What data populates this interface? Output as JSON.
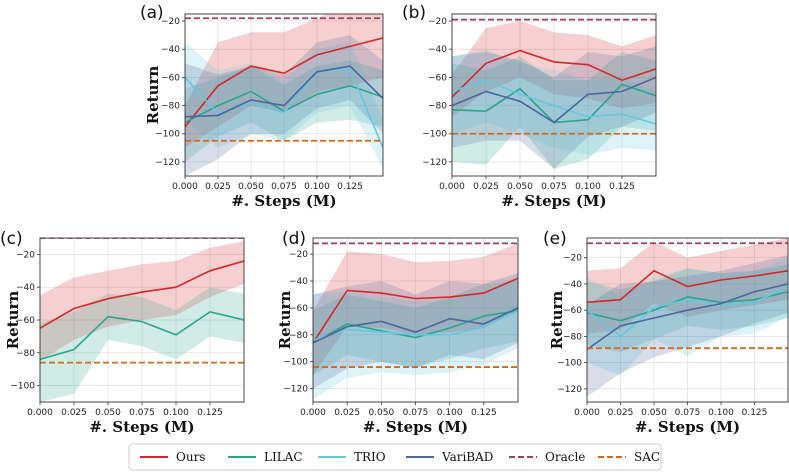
{
  "series_styles": [
    {
      "name": "Ours",
      "color": "#d62728",
      "dashed": false
    },
    {
      "name": "LILAC",
      "color": "#2ca58d",
      "dashed": false
    },
    {
      "name": "TRIO",
      "color": "#66c7e0",
      "dashed": false
    },
    {
      "name": "VariBAD",
      "color": "#4a67a1",
      "dashed": false
    },
    {
      "name": "Oracle",
      "color": "#a0405a",
      "dashed": true
    },
    {
      "name": "SAC",
      "color": "#d2691e",
      "dashed": true
    }
  ],
  "chart_data": [
    {
      "type": "line",
      "panel": "(a)",
      "xlabel": "#. Steps (M)",
      "ylabel": "Return",
      "xlim": [
        0,
        0.15
      ],
      "ylim": [
        -130,
        -15
      ],
      "xticks": [
        "0.000",
        "0.025",
        "0.050",
        "0.075",
        "0.100",
        "0.125"
      ],
      "yticks": [
        -120,
        -100,
        -80,
        -60,
        -40,
        -20
      ],
      "x": [
        0,
        0.025,
        0.05,
        0.075,
        0.1,
        0.125,
        0.15
      ],
      "series": [
        {
          "name": "Ours",
          "values": [
            -95,
            -66,
            -52,
            -57,
            -44,
            -38,
            -32
          ],
          "lower": [
            -110,
            -95,
            -80,
            -85,
            -70,
            -66,
            -60
          ],
          "upper": [
            -80,
            -35,
            -28,
            -28,
            -18,
            -8,
            -8
          ]
        },
        {
          "name": "LILAC",
          "values": [
            -92,
            -80,
            -70,
            -84,
            -72,
            -66,
            -74
          ],
          "lower": [
            -120,
            -102,
            -92,
            -105,
            -92,
            -90,
            -95
          ],
          "upper": [
            -68,
            -60,
            -52,
            -65,
            -52,
            -48,
            -55
          ]
        },
        {
          "name": "TRIO",
          "values": [
            -60,
            -86,
            -78,
            -85,
            -56,
            -54,
            -110
          ],
          "lower": [
            -90,
            -110,
            -100,
            -105,
            -85,
            -80,
            -125
          ],
          "upper": [
            -35,
            -55,
            -50,
            -62,
            -40,
            -35,
            -90
          ]
        },
        {
          "name": "VariBAD",
          "values": [
            -88,
            -87,
            -76,
            -80,
            -56,
            -52,
            -75
          ],
          "lower": [
            -130,
            -118,
            -100,
            -100,
            -82,
            -76,
            -100
          ],
          "upper": [
            -50,
            -58,
            -52,
            -58,
            -35,
            -30,
            -48
          ]
        },
        {
          "name": "Oracle",
          "constant": -18
        },
        {
          "name": "SAC",
          "constant": -105
        }
      ]
    },
    {
      "type": "line",
      "panel": "(b)",
      "xlabel": "#. Steps (M)",
      "ylabel": "",
      "xlim": [
        0,
        0.15
      ],
      "ylim": [
        -130,
        -15
      ],
      "xticks": [
        "0.000",
        "0.025",
        "0.050",
        "0.075",
        "0.100",
        "0.125"
      ],
      "yticks": [
        -120,
        -100,
        -80,
        -60,
        -40,
        -20
      ],
      "x": [
        0,
        0.025,
        0.05,
        0.075,
        0.1,
        0.125,
        0.15
      ],
      "series": [
        {
          "name": "Ours",
          "values": [
            -74,
            -50,
            -41,
            -49,
            -51,
            -62,
            -54
          ],
          "lower": [
            -88,
            -70,
            -60,
            -72,
            -75,
            -82,
            -78
          ],
          "upper": [
            -58,
            -25,
            -20,
            -28,
            -30,
            -38,
            -30
          ]
        },
        {
          "name": "LILAC",
          "values": [
            -83,
            -84,
            -68,
            -92,
            -90,
            -65,
            -73
          ],
          "lower": [
            -120,
            -122,
            -95,
            -125,
            -118,
            -95,
            -98
          ],
          "upper": [
            -50,
            -55,
            -45,
            -62,
            -62,
            -42,
            -48
          ]
        },
        {
          "name": "TRIO",
          "values": [
            -70,
            -62,
            -72,
            -80,
            -88,
            -86,
            -93
          ],
          "lower": [
            -100,
            -92,
            -100,
            -110,
            -115,
            -110,
            -112
          ],
          "upper": [
            -45,
            -40,
            -50,
            -55,
            -62,
            -60,
            -70
          ]
        },
        {
          "name": "VariBAD",
          "values": [
            -80,
            -70,
            -77,
            -92,
            -72,
            -70,
            -60
          ],
          "lower": [
            -110,
            -105,
            -105,
            -125,
            -102,
            -95,
            -85
          ],
          "upper": [
            -45,
            -42,
            -48,
            -60,
            -42,
            -45,
            -38
          ]
        },
        {
          "name": "Oracle",
          "constant": -19
        },
        {
          "name": "SAC",
          "constant": -100
        }
      ]
    },
    {
      "type": "line",
      "panel": "(c)",
      "xlabel": "#. Steps (M)",
      "ylabel": "Return",
      "xlim": [
        0,
        0.15
      ],
      "ylim": [
        -110,
        -10
      ],
      "xticks": [
        "0.000",
        "0.025",
        "0.050",
        "0.075",
        "0.100",
        "0.125"
      ],
      "yticks": [
        -100,
        -80,
        -60,
        -40,
        -20
      ],
      "x": [
        0,
        0.025,
        0.05,
        0.075,
        0.1,
        0.125,
        0.15
      ],
      "series": [
        {
          "name": "Ours",
          "values": [
            -65,
            -53,
            -47,
            -43,
            -40,
            -30,
            -24
          ],
          "lower": [
            -85,
            -72,
            -64,
            -60,
            -57,
            -46,
            -38
          ],
          "upper": [
            -45,
            -34,
            -30,
            -26,
            -24,
            -16,
            -12
          ]
        },
        {
          "name": "LILAC",
          "values": [
            -84,
            -78,
            -58,
            -61,
            -69,
            -55,
            -60
          ],
          "lower": [
            -110,
            -105,
            -72,
            -76,
            -84,
            -70,
            -74
          ],
          "upper": [
            -62,
            -55,
            -44,
            -46,
            -54,
            -40,
            -44
          ]
        },
        {
          "name": "Oracle",
          "constant": -10
        },
        {
          "name": "SAC",
          "constant": -86
        }
      ]
    },
    {
      "type": "line",
      "panel": "(d)",
      "xlabel": "#. Steps (M)",
      "ylabel": "Return",
      "xlim": [
        0,
        0.15
      ],
      "ylim": [
        -130,
        -8
      ],
      "xticks": [
        "0.000",
        "0.025",
        "0.050",
        "0.075",
        "0.100",
        "0.125"
      ],
      "yticks": [
        -120,
        -100,
        -80,
        -60,
        -40,
        -20
      ],
      "x": [
        0,
        0.025,
        0.05,
        0.075,
        0.1,
        0.125,
        0.15
      ],
      "series": [
        {
          "name": "Ours",
          "values": [
            -86,
            -47,
            -49,
            -53,
            -52,
            -49,
            -38
          ],
          "lower": [
            -110,
            -74,
            -75,
            -80,
            -78,
            -75,
            -62
          ],
          "upper": [
            -62,
            -18,
            -20,
            -26,
            -25,
            -22,
            -12
          ]
        },
        {
          "name": "LILAC",
          "values": [
            -86,
            -72,
            -77,
            -82,
            -75,
            -66,
            -62
          ],
          "lower": [
            -110,
            -95,
            -100,
            -104,
            -98,
            -90,
            -85
          ],
          "upper": [
            -62,
            -50,
            -55,
            -60,
            -52,
            -42,
            -40
          ]
        },
        {
          "name": "TRIO",
          "values": [
            -84,
            -76,
            -78,
            -80,
            -80,
            -74,
            -62
          ],
          "lower": [
            -128,
            -112,
            -108,
            -110,
            -108,
            -102,
            -90
          ],
          "upper": [
            -50,
            -48,
            -52,
            -55,
            -54,
            -48,
            -36
          ]
        },
        {
          "name": "VariBAD",
          "values": [
            -86,
            -74,
            -70,
            -78,
            -68,
            -72,
            -60
          ],
          "lower": [
            -120,
            -105,
            -100,
            -105,
            -95,
            -98,
            -86
          ],
          "upper": [
            -50,
            -44,
            -40,
            -50,
            -40,
            -42,
            -34
          ]
        },
        {
          "name": "Oracle",
          "constant": -12
        },
        {
          "name": "SAC",
          "constant": -104
        }
      ]
    },
    {
      "type": "line",
      "panel": "(e)",
      "xlabel": "#. Steps (M)",
      "ylabel": "Return",
      "xlim": [
        0,
        0.15
      ],
      "ylim": [
        -130,
        -5
      ],
      "xticks": [
        "0.000",
        "0.025",
        "0.050",
        "0.075",
        "0.100",
        "0.125"
      ],
      "yticks": [
        -120,
        -100,
        -80,
        -60,
        -40,
        -20
      ],
      "x": [
        0,
        0.025,
        0.05,
        0.075,
        0.1,
        0.125,
        0.15
      ],
      "series": [
        {
          "name": "Ours",
          "values": [
            -54,
            -52,
            -30,
            -42,
            -37,
            -34,
            -30
          ],
          "lower": [
            -78,
            -75,
            -55,
            -65,
            -60,
            -56,
            -52
          ],
          "upper": [
            -30,
            -28,
            -8,
            -20,
            -15,
            -10,
            -5
          ]
        },
        {
          "name": "LILAC",
          "values": [
            -62,
            -68,
            -60,
            -50,
            -54,
            -52,
            -46
          ],
          "lower": [
            -86,
            -92,
            -82,
            -72,
            -75,
            -72,
            -66
          ],
          "upper": [
            -38,
            -44,
            -38,
            -28,
            -32,
            -30,
            -25
          ]
        },
        {
          "name": "TRIO",
          "values": [
            -60,
            -80,
            -58,
            -52,
            -56,
            -54,
            -42
          ],
          "lower": [
            -100,
            -110,
            -82,
            -95,
            -80,
            -78,
            -65
          ],
          "upper": [
            -35,
            -50,
            -35,
            -28,
            -32,
            -30,
            -20
          ]
        },
        {
          "name": "VariBAD",
          "values": [
            -90,
            -72,
            -66,
            -60,
            -55,
            -46,
            -40
          ],
          "lower": [
            -126,
            -108,
            -96,
            -88,
            -80,
            -70,
            -62
          ],
          "upper": [
            -56,
            -40,
            -38,
            -34,
            -30,
            -24,
            -18
          ]
        },
        {
          "name": "Oracle",
          "constant": -9
        },
        {
          "name": "SAC",
          "constant": -89
        }
      ]
    }
  ]
}
